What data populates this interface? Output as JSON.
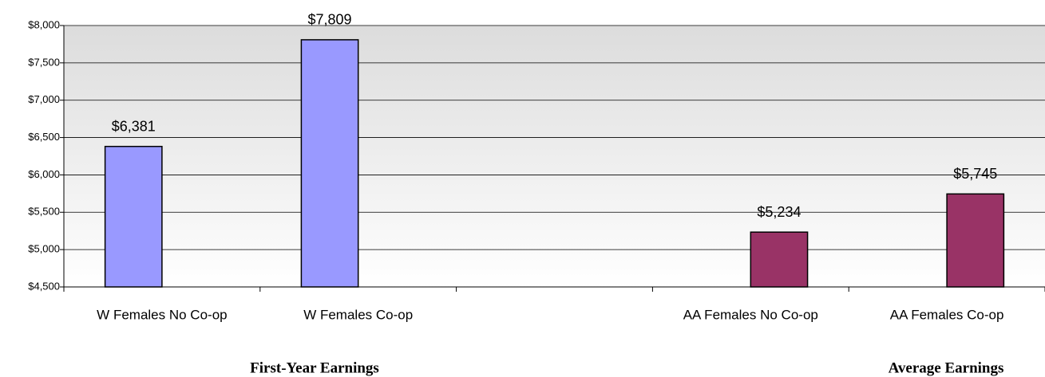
{
  "chart_data": {
    "type": "bar",
    "categories": [
      "W Females No Co-op",
      "W Females Co-op",
      null,
      "AA Females No Co-op",
      "AA Females Co-op"
    ],
    "series": [
      {
        "color": "#9999ff",
        "values": [
          6381,
          7809,
          null,
          null,
          null
        ],
        "value_labels": [
          "$6,381",
          "$7,809",
          null,
          null,
          null
        ]
      },
      {
        "color": "#993366",
        "values": [
          null,
          null,
          null,
          5234,
          5745
        ],
        "value_labels": [
          null,
          null,
          null,
          "$5,234",
          "$5,745"
        ]
      }
    ],
    "ylim": [
      4500,
      8000
    ],
    "yticks": [
      {
        "value": 4500,
        "label": "$4,500"
      },
      {
        "value": 5000,
        "label": "$5,000"
      },
      {
        "value": 5500,
        "label": "$5,500"
      },
      {
        "value": 6000,
        "label": "$6,000"
      },
      {
        "value": 6500,
        "label": "$6,500"
      },
      {
        "value": 7000,
        "label": "$7,000"
      },
      {
        "value": 7500,
        "label": "$7,500"
      },
      {
        "value": 8000,
        "label": "$8,000"
      }
    ],
    "grid": true,
    "annotations": [
      "First-Year Earnings",
      "Average Earnings"
    ]
  }
}
